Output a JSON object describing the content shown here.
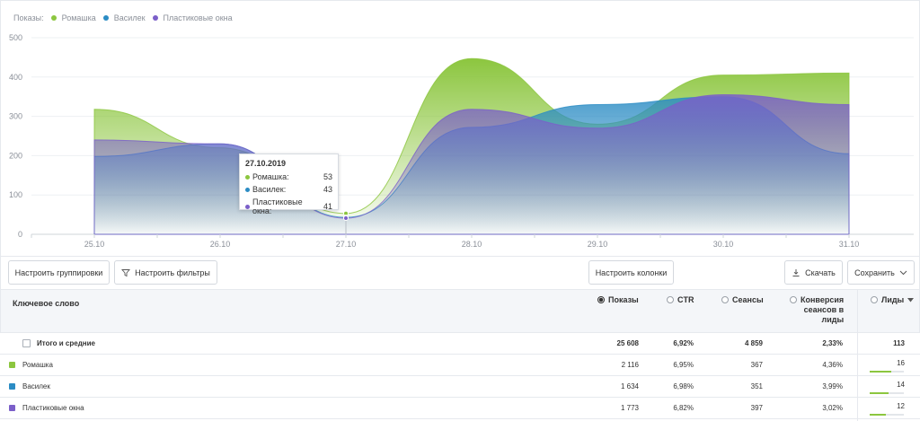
{
  "chart_data": {
    "type": "area",
    "legend_label": "Показы:",
    "legend_position": "top-left",
    "categories": [
      "25.10",
      "26.10",
      "27.10",
      "28.10",
      "29.10",
      "30.10",
      "31.10"
    ],
    "yticks": [
      0,
      100,
      200,
      300,
      400,
      500
    ],
    "ylim": [
      0,
      500
    ],
    "series": [
      {
        "name": "Ромашка",
        "color": "#8cc63f",
        "values": [
          318,
          220,
          53,
          447,
          280,
          405,
          410
        ]
      },
      {
        "name": "Василек",
        "color": "#2b8cc4",
        "values": [
          198,
          230,
          43,
          272,
          330,
          350,
          205
        ]
      },
      {
        "name": "Пластиковые окна",
        "color": "#7b5fc9",
        "values": [
          240,
          230,
          41,
          318,
          270,
          355,
          330
        ]
      }
    ],
    "tooltip": {
      "date": "27.10.2019",
      "rows": [
        {
          "name": "Ромашка:",
          "value": "53",
          "color": "#8cc63f"
        },
        {
          "name": "Василек:",
          "value": "43",
          "color": "#2b8cc4"
        },
        {
          "name": "Пластиковые окна:",
          "value": "41",
          "color": "#7b5fc9"
        }
      ]
    }
  },
  "toolbar": {
    "groupings_label": "Настроить группировки",
    "filters_label": "Настроить фильтры",
    "columns_label": "Настроить колонки",
    "download_label": "Скачать",
    "save_label": "Сохранить"
  },
  "table": {
    "headers": {
      "keyword": "Ключевое слово",
      "impressions": "Показы",
      "ctr": "CTR",
      "sessions": "Сеансы",
      "conversion": [
        "Конверсия",
        "сеансов в",
        "лиды"
      ],
      "leads": "Лиды"
    },
    "total": {
      "name": "Итого и средние",
      "impressions": "25 608",
      "ctr": "6,92%",
      "sessions": "4 859",
      "conversion": "2,33%",
      "leads": "113"
    },
    "rows": [
      {
        "name": "Ромашка",
        "color": "#8cc63f",
        "impressions": "2 116",
        "ctr": "6,95%",
        "sessions": "367",
        "conversion": "4,36%",
        "leads": "16",
        "lead_share": 0.62
      },
      {
        "name": "Василек",
        "color": "#2b8cc4",
        "impressions": "1 634",
        "ctr": "6,98%",
        "sessions": "351",
        "conversion": "3,99%",
        "leads": "14",
        "lead_share": 0.55
      },
      {
        "name": "Пластиковые окна",
        "color": "#7b5fc9",
        "impressions": "1 773",
        "ctr": "6,82%",
        "sessions": "397",
        "conversion": "3,02%",
        "leads": "12",
        "lead_share": 0.48
      }
    ]
  }
}
